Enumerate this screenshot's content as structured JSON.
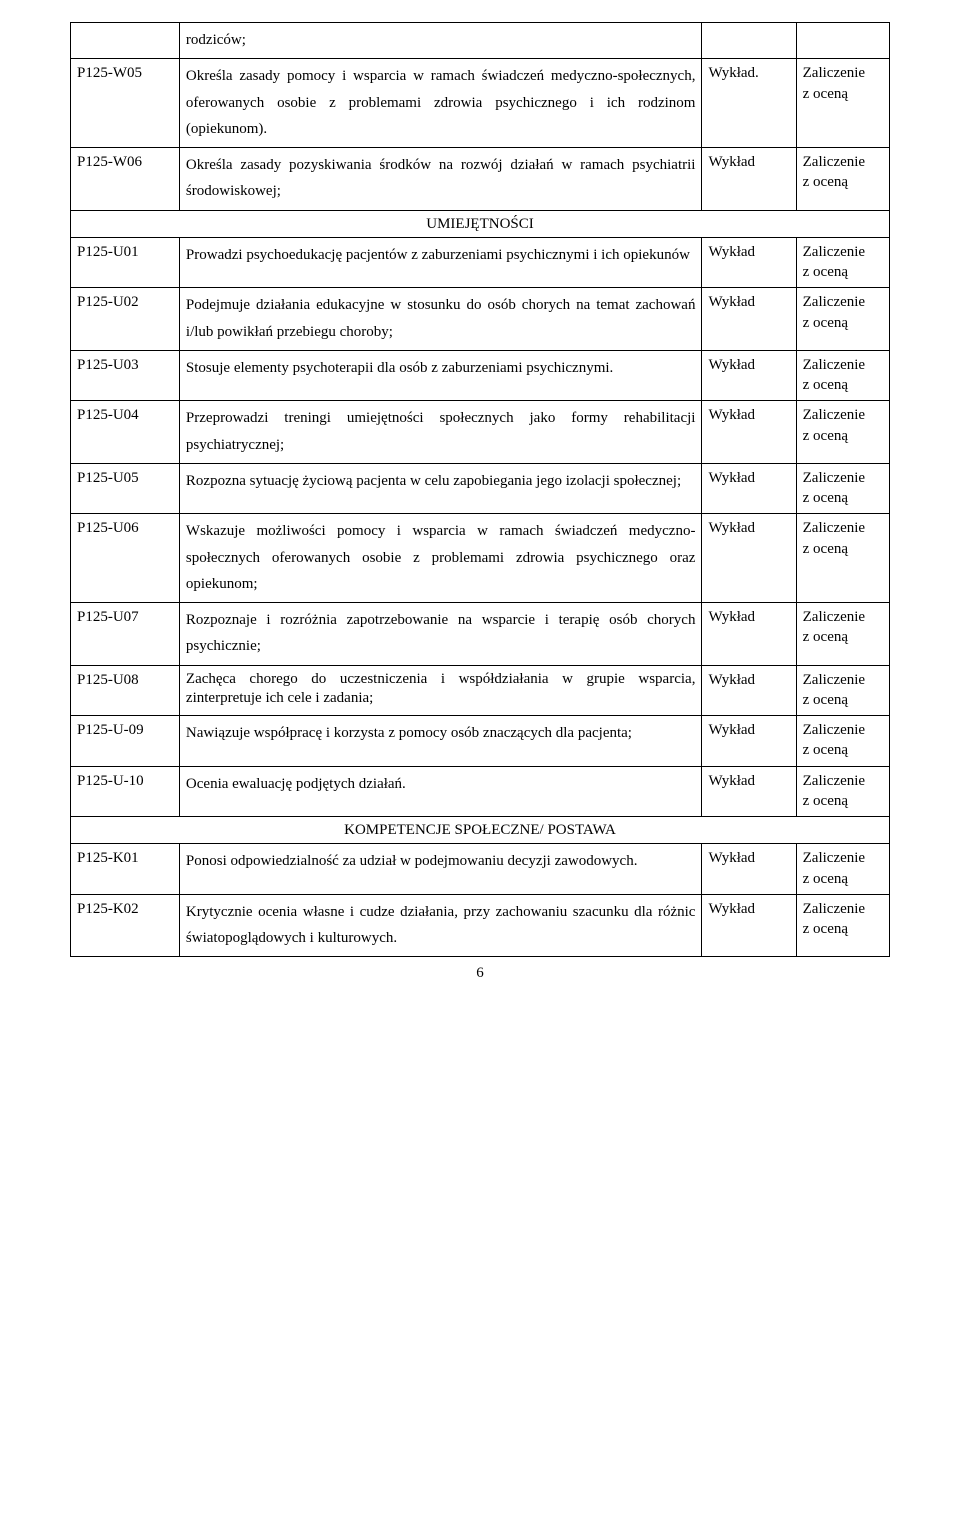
{
  "rows": [
    {
      "code": "",
      "desc": "rodziców;",
      "m": "",
      "g": "",
      "cls": "desc"
    },
    {
      "code": "P125-W05",
      "desc": "Określa zasady pomocy i wsparcia w ramach świadczeń medyczno-społecznych, oferowanych osobie z problemami zdrowia psychicznego i ich rodzinom (opiekunom).",
      "m": "Wykład.",
      "g": "Zaliczenie z oceną",
      "cls": "desc"
    },
    {
      "code": "P125-W06",
      "desc": "Określa zasady pozyskiwania środków na rozwój działań w ramach psychiatrii środowiskowej;",
      "m": "Wykład",
      "g": "Zaliczenie z oceną",
      "cls": "desc"
    },
    {
      "section": "UMIEJĘTNOŚCI"
    },
    {
      "code": "P125-U01",
      "desc": "Prowadzi psychoedukację pacjentów z zaburzeniami psychicznymi i ich opiekunów",
      "m": "Wykład",
      "g": "Zaliczenie z oceną",
      "cls": "desc"
    },
    {
      "code": "P125-U02",
      "desc": "Podejmuje działania edukacyjne w stosunku do osób chorych na temat zachowań i/lub powikłań przebiegu choroby;",
      "m": "Wykład",
      "g": "Zaliczenie z oceną",
      "cls": "desc"
    },
    {
      "code": "P125-U03",
      "desc": "Stosuje elementy psychoterapii dla osób z zaburzeniami psychicznymi.",
      "m": "Wykład",
      "g": "Zaliczenie z oceną",
      "cls": "desc"
    },
    {
      "code": "P125-U04",
      "desc": "Przeprowadzi treningi umiejętności społecznych jako formy rehabilitacji psychiatrycznej;",
      "m": "Wykład",
      "g": "Zaliczenie z oceną",
      "cls": "desc"
    },
    {
      "code": "P125-U05",
      "desc": "Rozpozna sytuację życiową pacjenta w celu zapobiegania jego izolacji społecznej;",
      "m": "Wykład",
      "g": "Zaliczenie z oceną",
      "cls": "desc"
    },
    {
      "code": "P125-U06",
      "desc": "Wskazuje możliwości pomocy i wsparcia w ramach świadczeń medyczno-społecznych oferowanych osobie z problemami zdrowia psychicznego oraz opiekunom;",
      "m": "Wykład",
      "g": "Zaliczenie z oceną",
      "cls": "desc"
    },
    {
      "code": "P125-U07",
      "desc": "Rozpoznaje i rozróżnia zapotrzebowanie na wsparcie i terapię osób chorych psychicznie;",
      "m": "Wykład",
      "g": "Zaliczenie z oceną",
      "cls": "desc"
    },
    {
      "code": "P125-U08",
      "desc": "Zachęca chorego do uczestniczenia i   współdziałania w grupie wsparcia, zinterpretuje ich cele i zadania;",
      "m": "Wykład",
      "g": "Zaliczenie z oceną",
      "cls": "tight"
    },
    {
      "code": "P125-U-09",
      "desc": "Nawiązuje współpracę i korzysta z pomocy osób znaczących dla pacjenta;",
      "m": "Wykład",
      "g": "Zaliczenie z oceną",
      "cls": "desc"
    },
    {
      "code": "P125-U-10",
      "desc": "Ocenia ewaluację podjętych działań.",
      "m": "Wykład",
      "g": "Zaliczenie z oceną",
      "cls": "desc"
    },
    {
      "section": "KOMPETENCJE SPOŁECZNE/ POSTAWA"
    },
    {
      "code": "P125-K01",
      "desc": "Ponosi odpowiedzialność za udział w podejmowaniu decyzji zawodowych.",
      "m": "Wykład",
      "g": "Zaliczenie z oceną",
      "cls": "desc"
    },
    {
      "code": "P125-K02",
      "desc": "Krytycznie ocenia własne i cudze działania, przy zachowaniu szacunku dla różnic światopoglądowych i kulturowych.",
      "m": "Wykład",
      "g": "Zaliczenie z oceną",
      "cls": "desc"
    }
  ],
  "page_number": "6"
}
